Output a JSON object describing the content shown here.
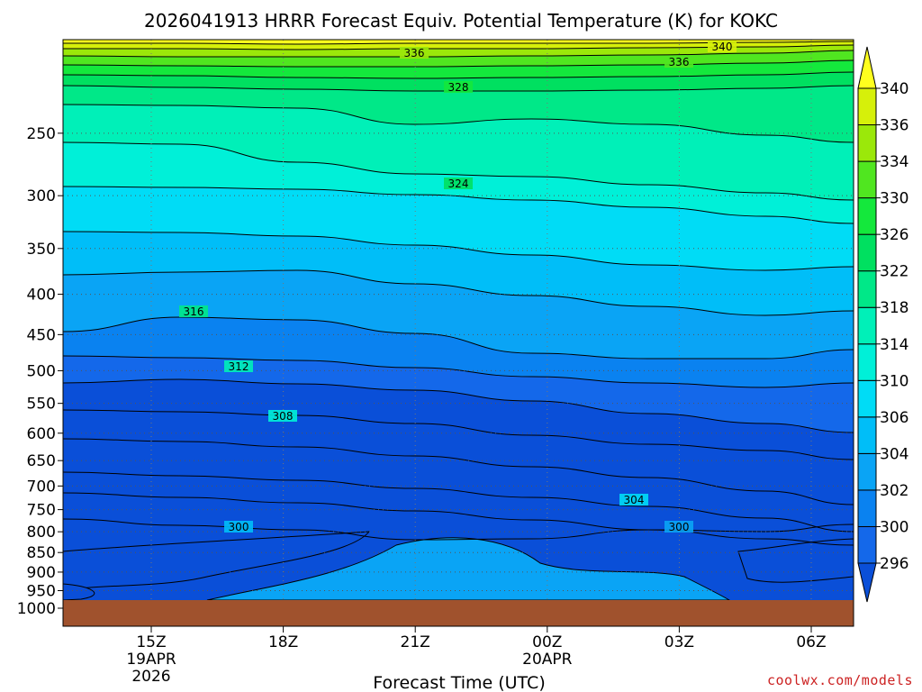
{
  "chart_data": {
    "type": "heatmap",
    "title": "2026041913 HRRR Forecast Equiv. Potential Temperature (K) for KOKC",
    "xlabel": "Forecast Time (UTC)",
    "ylabel": "",
    "credit": "coolwx.com/models",
    "y_axis": {
      "scale": "log",
      "reversed": true,
      "range": [
        1000,
        190
      ],
      "ticks": [
        "250",
        "300",
        "350",
        "400",
        "450",
        "500",
        "550",
        "600",
        "650",
        "700",
        "750",
        "800",
        "850",
        "900",
        "950",
        "1000"
      ]
    },
    "x_axis": {
      "ticks": [
        {
          "label": "15Z",
          "date": "19APR",
          "year": "2026"
        },
        {
          "label": "18Z",
          "date": "",
          "year": ""
        },
        {
          "label": "21Z",
          "date": "",
          "year": ""
        },
        {
          "label": "00Z",
          "date": "20APR",
          "year": ""
        },
        {
          "label": "03Z",
          "date": "",
          "year": ""
        },
        {
          "label": "06Z",
          "date": "",
          "year": ""
        }
      ]
    },
    "grid": true,
    "colorbar": {
      "placement": "right",
      "levels": [
        "296",
        "300",
        "302",
        "304",
        "306",
        "310",
        "314",
        "318",
        "322",
        "326",
        "330",
        "334",
        "336",
        "340"
      ],
      "colors": [
        "#0a4fd8",
        "#1468ea",
        "#0a82f0",
        "#0aa4f5",
        "#00bef8",
        "#00dcf6",
        "#00f0d8",
        "#00f0b8",
        "#00e888",
        "#00e060",
        "#14e83c",
        "#50e620",
        "#9be80a",
        "#d6f00a",
        "#ffff1e"
      ]
    },
    "contour_labels": [
      "340",
      "336",
      "336",
      "328",
      "324",
      "316",
      "312",
      "308",
      "304",
      "300",
      "300"
    ],
    "ground_color": "#a0522d"
  }
}
